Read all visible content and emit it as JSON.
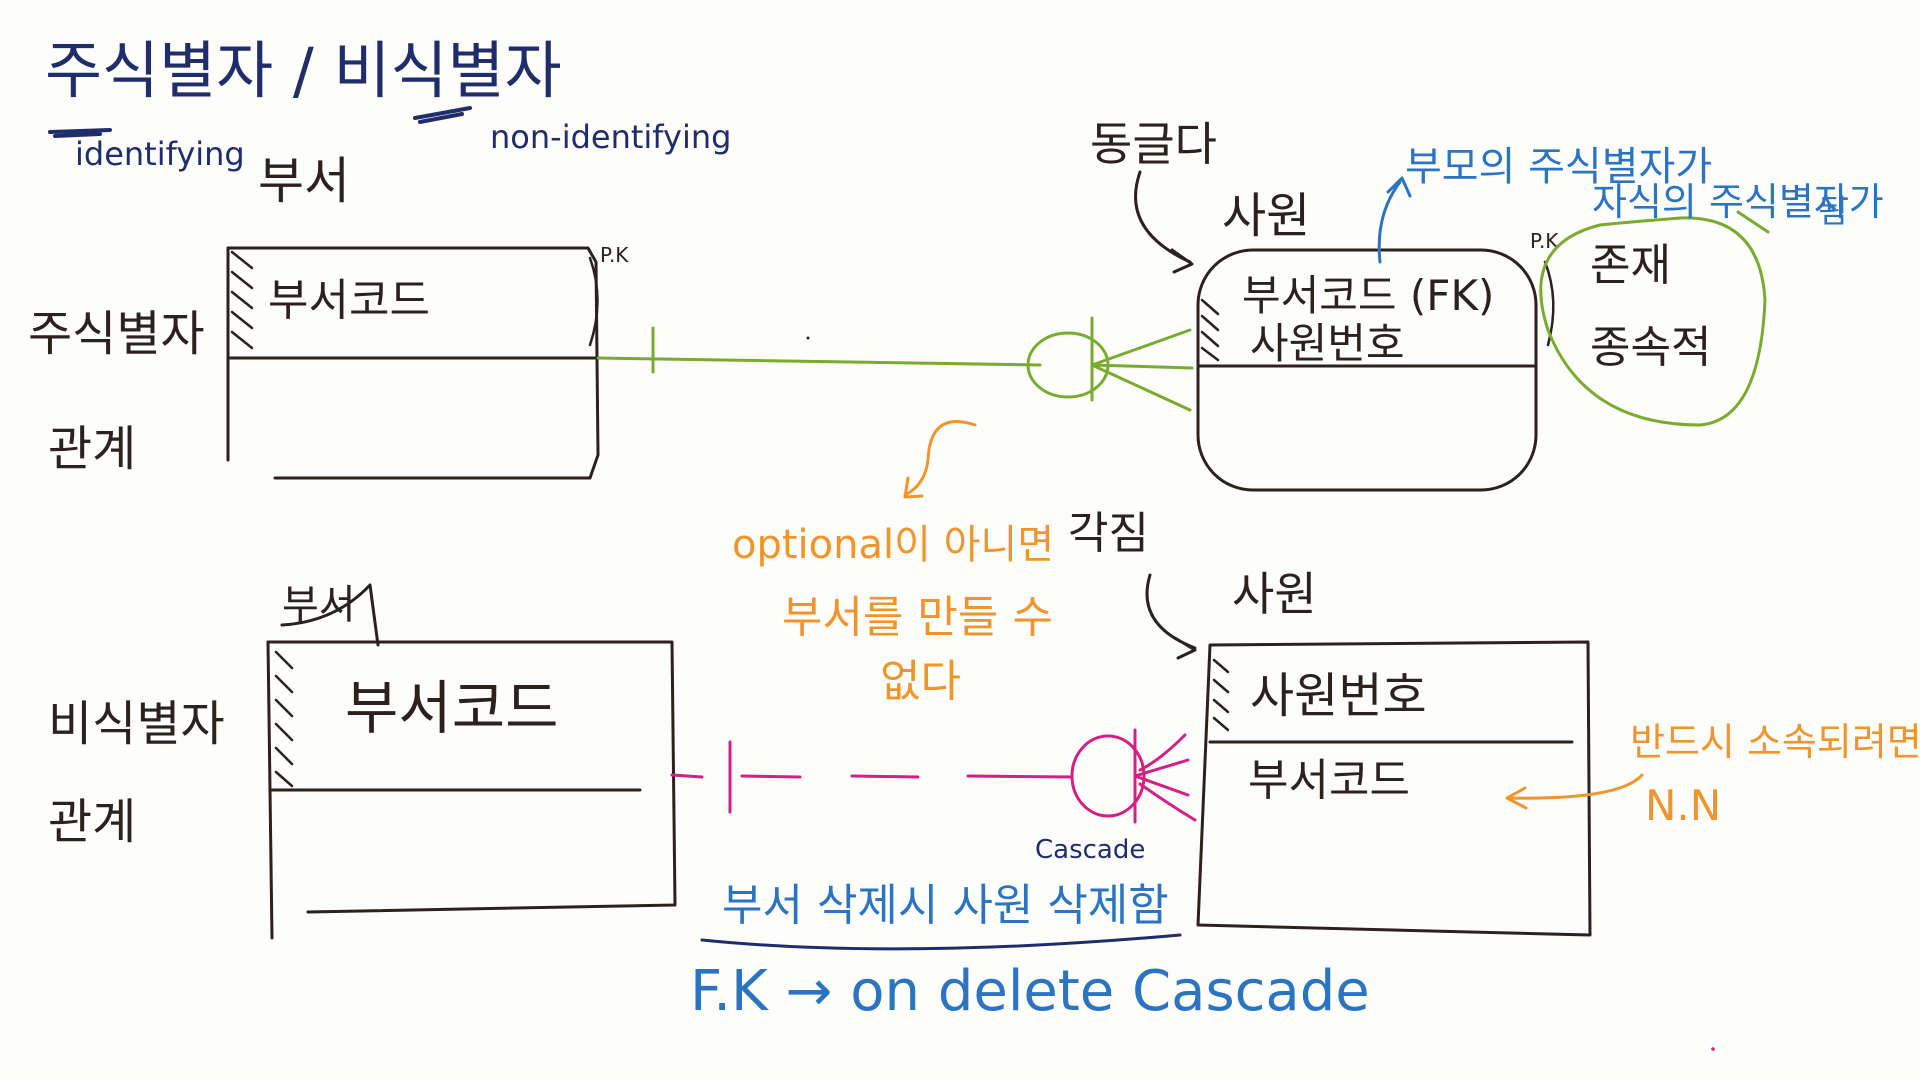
{
  "colors": {
    "ink": "#2b211d",
    "navy": "#1f2d6b",
    "blue": "#2b74c2",
    "green": "#79ab2f",
    "orange": "#f0952b",
    "magenta": "#d41f83"
  },
  "header": {
    "title": "주식별자 / 비식별자",
    "identifying": "identifying",
    "non_identifying": "non-identifying"
  },
  "top": {
    "left_label_1": "주식별자",
    "left_label_2": "관계",
    "dept_title": "부서",
    "dept_pk": "부서코드",
    "dept_pk_mark": "P.K",
    "emp_title": "사원",
    "emp_note_arrow": "동글다",
    "emp_fk": "부서코드 (FK)",
    "emp_pk": "사원번호",
    "emp_pk_mark": "P.K",
    "side_note_1": "존재",
    "side_note_2": "종속적",
    "blue_note_1": "부모의 주식별자가",
    "blue_note_2": "자식의 주식별자가",
    "blue_note_3": "됨"
  },
  "orange_note": {
    "line1": "optional이 아니면",
    "line2": "부서를 만들 수",
    "line3": "없다"
  },
  "bottom": {
    "left_label_1": "비식별자",
    "left_label_2": "관계",
    "dept_title": "부서",
    "dept_pk": "부서코드",
    "emp_title": "사원",
    "emp_note_arrow": "각짐",
    "emp_pk": "사원번호",
    "emp_fk": "부서코드",
    "right_note_1": "반드시 소속되려면",
    "right_note_2": "N.N",
    "cascade_small": "Cascade",
    "cascade_note": "부서 삭제시 사원 삭제함",
    "fk_rule": "F.K → on delete Cascade"
  }
}
